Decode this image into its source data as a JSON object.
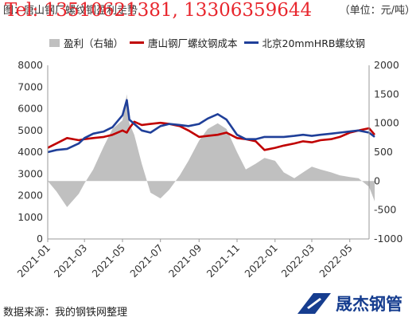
{
  "header": {
    "title": "图：唐山钢厂螺纹钢盈利走势",
    "unit": "（单位：元/吨）",
    "watermark": "Tel: 13510621381, 13306359644"
  },
  "legend": {
    "profit_label": "盈利（右轴）",
    "cost_label": "唐山钢厂螺纹钢成本",
    "price_label": "北京20mmHRB螺纹钢"
  },
  "source": "数据来源：我的钢铁网整理",
  "brand": {
    "name": "晟杰钢管"
  },
  "colors": {
    "profit": "#c0c0c0",
    "cost": "#c00000",
    "price": "#1f3f99",
    "brand": "#163d8f",
    "watermark": "#e8262d"
  },
  "chart_data": {
    "type": "line",
    "x_start": "2021-01",
    "x_end": "2022-06",
    "x_ticks": [
      "2021-01",
      "2021-03",
      "2021-05",
      "2021-07",
      "2021-09",
      "2021-11",
      "2022-01",
      "2022-03",
      "2022-05"
    ],
    "left_axis": {
      "ylim": [
        0,
        8000
      ],
      "ticks": [
        "0",
        "1000",
        "2000",
        "3000",
        "4000",
        "5000",
        "6000",
        "7000",
        "8000"
      ]
    },
    "right_axis": {
      "ylim": [
        -1000,
        2000
      ],
      "ticks": [
        "-1000",
        "-500",
        "0",
        "500",
        "1000",
        "1500",
        "2000"
      ]
    },
    "grid": false,
    "series": [
      {
        "name": "盈利（右轴）",
        "type": "area",
        "axis": "right",
        "x": [
          "2021-01-01",
          "2021-01-15",
          "2021-02-01",
          "2021-02-20",
          "2021-03-01",
          "2021-03-15",
          "2021-04-01",
          "2021-04-15",
          "2021-05-01",
          "2021-05-08",
          "2021-05-12",
          "2021-05-20",
          "2021-06-01",
          "2021-06-15",
          "2021-07-01",
          "2021-07-15",
          "2021-08-01",
          "2021-08-15",
          "2021-09-01",
          "2021-09-15",
          "2021-10-01",
          "2021-10-15",
          "2021-11-01",
          "2021-11-15",
          "2021-12-01",
          "2021-12-15",
          "2022-01-01",
          "2022-01-15",
          "2022-02-01",
          "2022-02-15",
          "2022-03-01",
          "2022-03-15",
          "2022-04-01",
          "2022-04-15",
          "2022-05-01",
          "2022-05-15",
          "2022-06-01",
          "2022-06-10"
        ],
        "values": [
          0,
          -180,
          -450,
          -220,
          -40,
          200,
          600,
          900,
          1050,
          1500,
          1000,
          800,
          300,
          -200,
          -300,
          -150,
          100,
          350,
          700,
          900,
          1000,
          900,
          500,
          200,
          300,
          400,
          350,
          150,
          50,
          150,
          250,
          200,
          150,
          100,
          70,
          50,
          -100,
          -350
        ]
      },
      {
        "name": "唐山钢厂螺纹钢成本",
        "type": "line",
        "axis": "left",
        "x": [
          "2021-01-01",
          "2021-01-15",
          "2021-02-01",
          "2021-02-20",
          "2021-03-01",
          "2021-03-15",
          "2021-04-01",
          "2021-04-15",
          "2021-05-01",
          "2021-05-08",
          "2021-05-12",
          "2021-05-20",
          "2021-06-01",
          "2021-06-15",
          "2021-07-01",
          "2021-07-15",
          "2021-08-01",
          "2021-08-15",
          "2021-09-01",
          "2021-09-15",
          "2021-10-01",
          "2021-10-15",
          "2021-11-01",
          "2021-11-15",
          "2021-12-01",
          "2021-12-15",
          "2022-01-01",
          "2022-01-15",
          "2022-02-01",
          "2022-02-15",
          "2022-03-01",
          "2022-03-15",
          "2022-04-01",
          "2022-04-15",
          "2022-05-01",
          "2022-05-15",
          "2022-06-01",
          "2022-06-10"
        ],
        "values": [
          4200,
          4400,
          4650,
          4550,
          4600,
          4650,
          4700,
          4800,
          5000,
          4900,
          5100,
          5400,
          5250,
          5300,
          5350,
          5300,
          5200,
          5000,
          4700,
          4750,
          4800,
          4900,
          4650,
          4600,
          4500,
          4100,
          4200,
          4300,
          4400,
          4500,
          4450,
          4550,
          4600,
          4700,
          4900,
          5000,
          5100,
          4800
        ]
      },
      {
        "name": "北京20mmHRB螺纹钢",
        "type": "line",
        "axis": "left",
        "x": [
          "2021-01-01",
          "2021-01-15",
          "2021-02-01",
          "2021-02-20",
          "2021-03-01",
          "2021-03-15",
          "2021-04-01",
          "2021-04-15",
          "2021-05-01",
          "2021-05-08",
          "2021-05-12",
          "2021-05-20",
          "2021-06-01",
          "2021-06-15",
          "2021-07-01",
          "2021-07-15",
          "2021-08-01",
          "2021-08-15",
          "2021-09-01",
          "2021-09-15",
          "2021-10-01",
          "2021-10-15",
          "2021-11-01",
          "2021-11-15",
          "2021-12-01",
          "2021-12-15",
          "2022-01-01",
          "2022-01-15",
          "2022-02-01",
          "2022-02-15",
          "2022-03-01",
          "2022-03-15",
          "2022-04-01",
          "2022-04-15",
          "2022-05-01",
          "2022-05-15",
          "2022-06-01",
          "2022-06-10"
        ],
        "values": [
          4000,
          4100,
          4150,
          4400,
          4650,
          4850,
          4950,
          5150,
          5700,
          6400,
          5500,
          5300,
          5000,
          4900,
          5200,
          5300,
          5250,
          5200,
          5300,
          5550,
          5750,
          5500,
          4800,
          4600,
          4600,
          4700,
          4700,
          4700,
          4750,
          4800,
          4750,
          4800,
          4850,
          4900,
          4950,
          5000,
          4900,
          4700
        ]
      }
    ]
  }
}
